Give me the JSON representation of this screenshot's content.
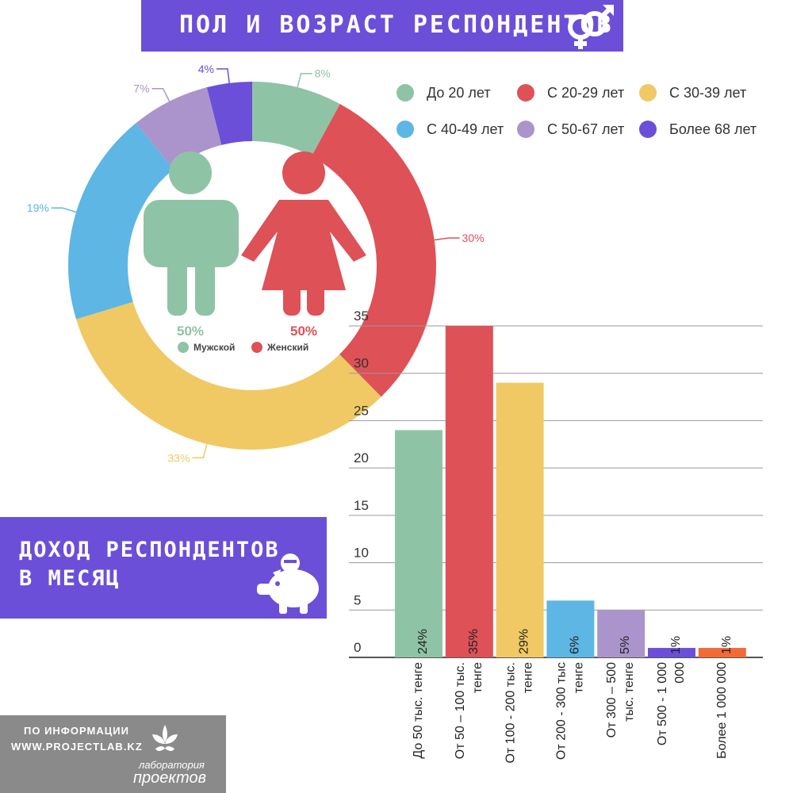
{
  "header": {
    "title": "ПОЛ И ВОЗРАСТ РЕСПОНДЕНТОВ",
    "icon": "gender-icon"
  },
  "donut": {
    "chart_data": {
      "type": "pie",
      "categories": [
        "До 20 лет",
        "С 20-29 лет",
        "С 30-39 лет",
        "С 40-49 лет",
        "С 50-67 лет",
        "Более 68 лет"
      ],
      "values": [
        8,
        30,
        33,
        19,
        7,
        4
      ],
      "labels": [
        "8%",
        "30%",
        "33%",
        "19%",
        "7%",
        "4%"
      ],
      "colors": [
        "#8fc3a5",
        "#de5157",
        "#f0c965",
        "#5db6e3",
        "#ab94cc",
        "#6b4fd8"
      ],
      "legend_position": "top-right"
    }
  },
  "gender": {
    "male_pct": "50%",
    "female_pct": "50%",
    "male_label": "Мужской",
    "female_label": "Женский",
    "male_color": "#8fc3a5",
    "female_color": "#de5157"
  },
  "income_banner": {
    "line1": "ДОХОД РЕСПОНДЕНТОВ",
    "line2": "В МЕСЯЦ",
    "icon": "piggy-bank-icon"
  },
  "bar_chart": {
    "chart_data": {
      "type": "bar",
      "categories": [
        "До 50 тыс. тенге",
        "От 50 – 100 тыс. тенге",
        "От 100 - 200 тыс. тенге",
        "От 200 - 300 тыс. тенге",
        "От 300 – 500 тыс. тенге",
        "От 500 - 1 000 000",
        "Более 1 000 000"
      ],
      "category_lines": [
        [
          "До 50 тыс. тенге"
        ],
        [
          "От 50 – 100 тыс.",
          "тенге"
        ],
        [
          "От 100 - 200 тыс.",
          "тенге"
        ],
        [
          "От 200 - 300 тыс",
          "тенге"
        ],
        [
          "От 300 – 500",
          "тыс. тенге"
        ],
        [
          "От 500 - 1 000",
          "000"
        ],
        [
          "Более 1 000 000"
        ]
      ],
      "values": [
        24,
        35,
        29,
        6,
        5,
        1,
        1
      ],
      "labels": [
        "24%",
        "35%",
        "29%",
        "6%",
        "5%",
        "1%",
        "1%"
      ],
      "colors": [
        "#8fc3a5",
        "#de5157",
        "#f0c965",
        "#5db6e3",
        "#ab94cc",
        "#6b4fd8",
        "#f26a36"
      ],
      "yticks": [
        0,
        5,
        10,
        15,
        20,
        25,
        30,
        35
      ],
      "ylim": [
        0,
        35
      ],
      "grid": true
    }
  },
  "footer": {
    "info_line1": "ПО ИНФОРМАЦИИ",
    "info_line2": "WWW.PROJECTLAB.KZ",
    "logo_line1": "лаборатория",
    "logo_line2": "проектов"
  }
}
